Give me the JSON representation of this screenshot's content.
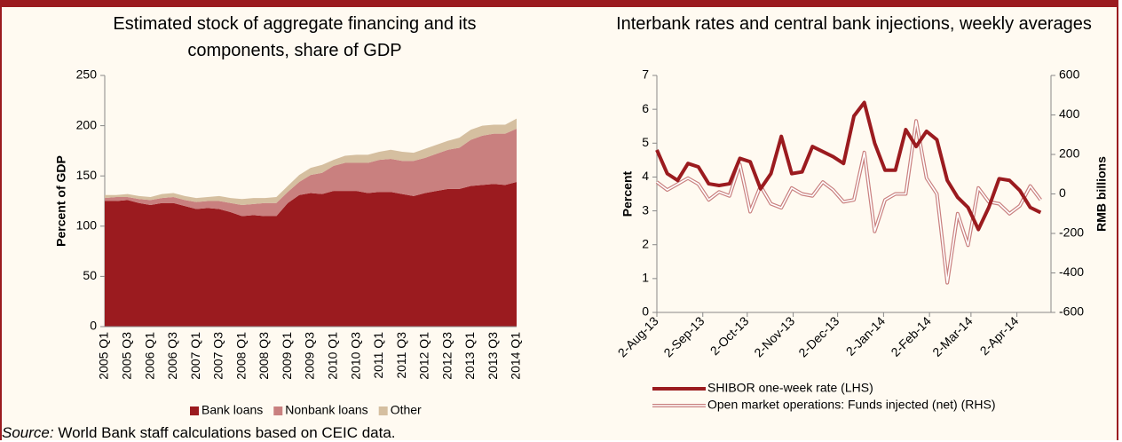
{
  "chart_data": [
    {
      "type": "area",
      "stacked": true,
      "title": "Estimated stock of aggregate financing and its components, share of GDP",
      "y_label": "Percent of GDP",
      "categories": [
        "2005 Q1",
        null,
        "2005 Q3",
        null,
        "2006 Q1",
        null,
        "2006 Q3",
        null,
        "2007 Q1",
        null,
        "2007 Q3",
        null,
        "2008 Q1",
        null,
        "2008 Q3",
        null,
        "2009 Q1",
        null,
        "2009 Q3",
        null,
        "2010 Q1",
        null,
        "2010 Q3",
        null,
        "2011 Q1",
        null,
        "2011 Q3",
        null,
        "2012 Q1",
        null,
        "2012 Q3",
        null,
        "2013 Q1",
        null,
        "2013 Q3",
        null,
        "2014 Q1"
      ],
      "series": [
        {
          "name": "Bank loans",
          "color": "#9b1b1f",
          "values": [
            125,
            125,
            126,
            123,
            121,
            123,
            123,
            120,
            117,
            118,
            117,
            114,
            110,
            111,
            110,
            110,
            123,
            131,
            133,
            132,
            135,
            135,
            135,
            133,
            134,
            134,
            132,
            130,
            133,
            135,
            137,
            137,
            140,
            141,
            142,
            141,
            144
          ]
        },
        {
          "name": "Nonbank loans",
          "color": "#c9807f",
          "values": [
            3,
            4,
            3,
            4,
            5,
            5,
            6,
            6,
            7,
            7,
            8,
            9,
            11,
            11,
            13,
            13,
            11,
            13,
            18,
            21,
            25,
            28,
            28,
            30,
            32,
            33,
            33,
            35,
            35,
            37,
            39,
            41,
            46,
            49,
            50,
            51,
            53
          ]
        },
        {
          "name": "Other",
          "color": "#d5bfa0",
          "values": [
            3,
            2,
            3,
            3,
            3,
            4,
            4,
            4,
            4,
            4,
            5,
            5,
            6,
            6,
            5,
            6,
            6,
            7,
            7,
            8,
            6,
            7,
            8,
            8,
            8,
            9,
            9,
            8,
            9,
            9,
            9,
            10,
            10,
            10,
            9,
            9,
            10
          ]
        }
      ],
      "ylim": [
        0,
        250
      ],
      "yticks": [
        0,
        50,
        100,
        150,
        200,
        250
      ],
      "grid": false,
      "legend": "bottom"
    },
    {
      "type": "line",
      "title": "Interbank rates and central bank injections, weekly averages",
      "y_label": "Percent",
      "y2_label": "RMB billions",
      "x": [
        "2013-08-02",
        "2013-08-09",
        "2013-08-16",
        "2013-08-23",
        "2013-08-30",
        "2013-09-06",
        "2013-09-13",
        "2013-09-20",
        "2013-09-27",
        "2013-10-04",
        "2013-10-11",
        "2013-10-18",
        "2013-10-25",
        "2013-11-01",
        "2013-11-08",
        "2013-11-15",
        "2013-11-22",
        "2013-11-29",
        "2013-12-06",
        "2013-12-13",
        "2013-12-20",
        "2013-12-27",
        "2014-01-03",
        "2014-01-10",
        "2014-01-17",
        "2014-01-24",
        "2014-01-31",
        "2014-02-07",
        "2014-02-14",
        "2014-02-21",
        "2014-02-28",
        "2014-03-07",
        "2014-03-14",
        "2014-03-21",
        "2014-03-28",
        "2014-04-04",
        "2014-04-11",
        "2014-04-18"
      ],
      "xlim": [
        "2013-08-02",
        "2014-04-25"
      ],
      "xticks": [
        {
          "value": "2013-08-02",
          "label": "2-Aug-13"
        },
        {
          "value": "2013-09-02",
          "label": "2-Sep-13"
        },
        {
          "value": "2013-10-02",
          "label": "2-Oct-13"
        },
        {
          "value": "2013-11-02",
          "label": "2-Nov-13"
        },
        {
          "value": "2013-12-02",
          "label": "2-Dec-13"
        },
        {
          "value": "2014-01-02",
          "label": "2-Jan-14"
        },
        {
          "value": "2014-02-02",
          "label": "2-Feb-14"
        },
        {
          "value": "2014-03-02",
          "label": "2-Mar-14"
        },
        {
          "value": "2014-04-02",
          "label": "2-Apr-14"
        }
      ],
      "series": [
        {
          "name": "SHIBOR one-week rate (LHS)",
          "color": "#9b1b1f",
          "axis": "y",
          "style": "solid",
          "values": [
            4.8,
            4.1,
            3.9,
            4.4,
            4.3,
            3.8,
            3.75,
            3.8,
            4.55,
            4.45,
            3.65,
            4.1,
            5.2,
            4.1,
            4.15,
            4.9,
            4.75,
            4.6,
            4.4,
            5.8,
            6.2,
            5.0,
            4.2,
            4.2,
            5.4,
            4.9,
            5.35,
            5.1,
            3.9,
            3.4,
            3.1,
            2.45,
            3.1,
            3.95,
            3.9,
            3.6,
            3.1,
            2.95
          ]
        },
        {
          "name": "Open market operations: Funds injected (net) (RHS)",
          "color": "#c9807f",
          "axis": "y2",
          "style": "double",
          "values": [
            60,
            20,
            50,
            80,
            50,
            -30,
            10,
            -10,
            150,
            -90,
            40,
            -50,
            -70,
            30,
            0,
            -10,
            60,
            20,
            -40,
            -30,
            210,
            -190,
            -30,
            0,
            0,
            370,
            80,
            0,
            -450,
            -100,
            -260,
            30,
            -40,
            -50,
            -100,
            -60,
            40,
            -30
          ]
        }
      ],
      "ylim": [
        0,
        7
      ],
      "yticks": [
        0,
        1,
        2,
        3,
        4,
        5,
        6,
        7
      ],
      "y2lim": [
        -600,
        600
      ],
      "y2ticks": [
        -600,
        -400,
        -200,
        0,
        200,
        400,
        600
      ],
      "grid": false,
      "legend": "bottom-left"
    }
  ],
  "source": {
    "label": "Source:",
    "text": "World Bank staff calculations based on CEIC data."
  }
}
